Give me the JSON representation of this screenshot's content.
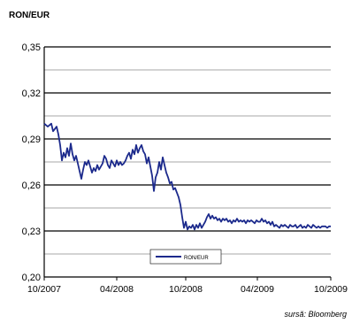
{
  "chart_data": {
    "type": "line",
    "title": "RON/EUR",
    "xlabel": "",
    "ylabel": "",
    "source": "sursă: Bloomberg",
    "ylim": [
      0.2,
      0.35
    ],
    "y_ticks": [
      "0,20",
      "0,23",
      "0,26",
      "0,29",
      "0,32",
      "0,35"
    ],
    "y_tick_values": [
      0.2,
      0.23,
      0.26,
      0.29,
      0.32,
      0.35
    ],
    "x_ticks": [
      "10/2007",
      "04/2008",
      "10/2008",
      "04/2009",
      "10/2009"
    ],
    "grid": true,
    "legend": "bottom-center",
    "line_color": "#1c2a8c",
    "series": [
      {
        "name": "RON/EUR",
        "x": [
          0,
          4,
          8,
          10,
          14,
          16,
          18,
          20,
          22,
          24,
          26,
          28,
          30,
          32,
          34,
          36,
          38,
          40,
          42,
          44,
          46,
          48,
          50,
          52,
          54,
          56,
          58,
          60,
          62,
          64,
          66,
          68,
          70,
          72,
          74,
          76,
          78,
          80,
          82,
          84,
          86,
          88,
          90,
          92,
          94,
          96,
          98,
          100,
          102,
          104,
          106,
          108,
          110,
          112,
          114,
          116,
          118,
          120,
          122,
          124,
          126,
          128,
          130,
          132,
          134,
          136,
          138,
          140,
          142,
          144,
          146,
          148,
          150,
          152,
          154,
          156,
          158,
          160,
          162,
          164,
          166,
          168,
          170,
          172,
          174,
          176,
          178,
          180,
          182,
          184,
          186,
          188,
          190,
          192,
          194,
          196,
          198,
          200,
          202,
          204,
          206,
          208,
          210,
          212,
          214,
          216,
          218,
          220,
          222,
          224,
          226,
          228,
          230,
          232,
          234,
          236,
          238,
          240,
          242,
          244,
          246,
          248,
          250,
          252,
          254,
          256,
          258,
          260,
          262,
          264,
          266,
          268,
          270,
          272,
          274,
          276,
          278,
          280,
          282,
          284,
          286,
          288,
          290,
          292,
          294,
          296,
          298,
          300,
          302,
          304,
          306,
          308,
          310,
          312,
          314,
          316,
          318,
          320,
          322,
          324
        ],
        "values": [
          0.3,
          0.298,
          0.3,
          0.295,
          0.298,
          0.293,
          0.286,
          0.276,
          0.281,
          0.278,
          0.284,
          0.279,
          0.287,
          0.28,
          0.276,
          0.279,
          0.274,
          0.269,
          0.264,
          0.27,
          0.275,
          0.273,
          0.276,
          0.272,
          0.268,
          0.271,
          0.269,
          0.273,
          0.27,
          0.272,
          0.274,
          0.279,
          0.277,
          0.273,
          0.271,
          0.276,
          0.274,
          0.272,
          0.276,
          0.273,
          0.275,
          0.273,
          0.274,
          0.276,
          0.279,
          0.281,
          0.277,
          0.283,
          0.28,
          0.286,
          0.281,
          0.284,
          0.286,
          0.282,
          0.28,
          0.274,
          0.278,
          0.272,
          0.266,
          0.256,
          0.265,
          0.268,
          0.275,
          0.27,
          0.278,
          0.273,
          0.268,
          0.265,
          0.261,
          0.262,
          0.257,
          0.258,
          0.255,
          0.252,
          0.247,
          0.239,
          0.232,
          0.236,
          0.231,
          0.233,
          0.232,
          0.234,
          0.231,
          0.234,
          0.232,
          0.235,
          0.232,
          0.234,
          0.236,
          0.239,
          0.241,
          0.238,
          0.24,
          0.238,
          0.239,
          0.237,
          0.238,
          0.236,
          0.238,
          0.237,
          0.238,
          0.236,
          0.237,
          0.235,
          0.237,
          0.236,
          0.238,
          0.236,
          0.237,
          0.236,
          0.237,
          0.235,
          0.237,
          0.236,
          0.237,
          0.236,
          0.235,
          0.237,
          0.236,
          0.236,
          0.238,
          0.236,
          0.237,
          0.235,
          0.236,
          0.234,
          0.236,
          0.233,
          0.234,
          0.233,
          0.232,
          0.234,
          0.233,
          0.234,
          0.233,
          0.232,
          0.234,
          0.233,
          0.233,
          0.234,
          0.232,
          0.233,
          0.234,
          0.232,
          0.233,
          0.232,
          0.234,
          0.233,
          0.232,
          0.234,
          0.233,
          0.232,
          0.233,
          0.232,
          0.233,
          0.233,
          0.233,
          0.232,
          0.233,
          0.233
        ]
      }
    ]
  }
}
